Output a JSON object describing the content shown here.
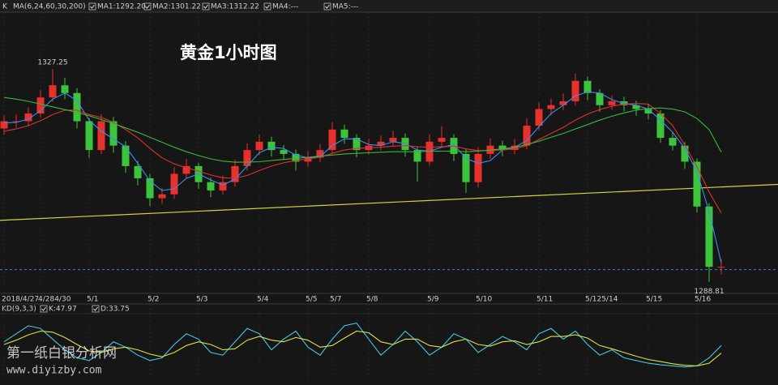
{
  "chart_data": [
    {
      "type": "candlestick",
      "label": "K",
      "indicator": "MA(6,24,60,30,200)",
      "title": "黄金1小时图",
      "categories": [
        "2018/4/27",
        null,
        null,
        "4/284/30",
        null,
        null,
        null,
        "5/1",
        null,
        null,
        null,
        null,
        "5/2",
        null,
        null,
        null,
        "5/3",
        null,
        null,
        null,
        null,
        "5/4",
        null,
        null,
        null,
        "5/5",
        null,
        "5/7",
        null,
        null,
        "5/8",
        null,
        null,
        null,
        null,
        "5/9",
        null,
        null,
        null,
        "5/10",
        null,
        null,
        null,
        null,
        "5/11",
        null,
        null,
        null,
        "5/125/14",
        null,
        null,
        null,
        null,
        "5/15",
        null,
        null,
        null,
        "5/16",
        null,
        null
      ],
      "open": [
        1316.5,
        1317.8,
        1317.8,
        1319.2,
        1322.1,
        1324.3,
        1322.9,
        1317.8,
        1312.6,
        1317.8,
        1313.4,
        1309.7,
        1307.5,
        1303.9,
        1304.6,
        1308.3,
        1309.7,
        1306.8,
        1305.3,
        1306.8,
        1309.7,
        1312.6,
        1314.1,
        1312.6,
        1311.9,
        1310.5,
        1311.2,
        1312.6,
        1316.3,
        1314.8,
        1312.6,
        1313.4,
        1314.1,
        1314.8,
        1312.6,
        1310.5,
        1314.1,
        1314.8,
        1311.9,
        1306.8,
        1311.9,
        1313.4,
        1312.6,
        1313.4,
        1317.0,
        1320.0,
        1320.7,
        1321.4,
        1325.1,
        1322.9,
        1320.7,
        1321.4,
        1320.7,
        1320.0,
        1319.2,
        1314.8,
        1313.4,
        1310.5,
        1302.4,
        1291.5
      ],
      "high": [
        1318.9,
        1319.0,
        1320.3,
        1323.4,
        1327.25,
        1325.6,
        1323.8,
        1318.4,
        1319.1,
        1318.6,
        1314.2,
        1310.6,
        1308.3,
        1305.8,
        1309.5,
        1311.0,
        1310.3,
        1307.6,
        1308.0,
        1310.9,
        1313.8,
        1315.3,
        1315.0,
        1313.5,
        1312.7,
        1312.4,
        1313.7,
        1317.6,
        1317.2,
        1315.5,
        1314.6,
        1315.2,
        1316.1,
        1315.6,
        1313.3,
        1315.4,
        1316.9,
        1315.5,
        1312.8,
        1313.1,
        1314.7,
        1314.3,
        1314.6,
        1318.3,
        1321.2,
        1321.9,
        1322.8,
        1326.4,
        1325.9,
        1323.6,
        1322.5,
        1322.2,
        1321.5,
        1320.9,
        1319.8,
        1315.9,
        1314.0,
        1311.1,
        1303.0,
        1292.9
      ],
      "low": [
        1315.4,
        1316.6,
        1316.9,
        1318.5,
        1321.3,
        1321.8,
        1316.5,
        1311.2,
        1311.9,
        1312.1,
        1308.5,
        1306.2,
        1302.5,
        1302.9,
        1303.8,
        1307.4,
        1305.6,
        1304.1,
        1304.6,
        1306.0,
        1308.9,
        1311.8,
        1311.4,
        1310.8,
        1308.9,
        1309.6,
        1310.4,
        1311.9,
        1313.7,
        1311.3,
        1311.8,
        1312.5,
        1313.2,
        1311.4,
        1306.9,
        1309.8,
        1313.2,
        1310.6,
        1304.9,
        1305.9,
        1311.0,
        1311.5,
        1311.8,
        1312.7,
        1316.2,
        1318.9,
        1319.8,
        1320.6,
        1321.6,
        1319.5,
        1319.9,
        1319.6,
        1318.8,
        1318.1,
        1313.9,
        1312.5,
        1309.2,
        1301.3,
        1288.81,
        1290.1
      ],
      "close": [
        1317.8,
        1317.8,
        1319.2,
        1322.1,
        1324.3,
        1322.9,
        1317.8,
        1312.6,
        1317.8,
        1313.4,
        1309.7,
        1307.5,
        1303.9,
        1304.6,
        1308.3,
        1309.7,
        1306.8,
        1305.3,
        1306.8,
        1309.7,
        1312.6,
        1314.1,
        1312.6,
        1311.9,
        1310.5,
        1311.2,
        1312.6,
        1316.3,
        1314.8,
        1312.6,
        1313.4,
        1314.1,
        1314.8,
        1312.6,
        1310.5,
        1314.1,
        1314.8,
        1311.9,
        1306.8,
        1311.9,
        1313.4,
        1312.6,
        1313.4,
        1317.0,
        1320.0,
        1320.7,
        1321.4,
        1325.1,
        1322.9,
        1320.7,
        1321.4,
        1320.7,
        1320.0,
        1319.2,
        1314.8,
        1313.4,
        1310.5,
        1302.4,
        1291.5,
        1291.5
      ],
      "up_color": "#e8302c",
      "down_color": "#3cc43c",
      "series": [
        {
          "name": "MA1:1292.20",
          "color": "#3a8ef0",
          "values": [
            1317.5,
            1317.6,
            1318.2,
            1319.7,
            1321.8,
            1322.9,
            1321.5,
            1318.0,
            1316.0,
            1314.6,
            1313.2,
            1310.2,
            1307.0,
            1305.3,
            1305.6,
            1307.5,
            1308.3,
            1307.2,
            1306.3,
            1307.3,
            1309.7,
            1312.1,
            1313.1,
            1312.9,
            1311.7,
            1311.2,
            1311.4,
            1313.4,
            1314.6,
            1314.6,
            1313.6,
            1313.4,
            1314.1,
            1313.8,
            1312.6,
            1312.4,
            1313.1,
            1313.6,
            1311.1,
            1310.2,
            1310.7,
            1312.6,
            1313.1,
            1314.3,
            1316.8,
            1319.2,
            1320.7,
            1322.4,
            1323.1,
            1322.9,
            1321.7,
            1321.0,
            1320.7,
            1320.0,
            1318.0,
            1315.8,
            1312.9,
            1308.7,
            1301.5,
            1292.2
          ]
        },
        {
          "name": "MA2:1301.22",
          "color": "#e0302c",
          "values": [
            1316.0,
            1316.4,
            1317.0,
            1317.9,
            1319.0,
            1319.8,
            1319.8,
            1319.0,
            1318.5,
            1317.6,
            1316.3,
            1314.8,
            1312.9,
            1311.2,
            1310.1,
            1309.4,
            1308.8,
            1308.1,
            1307.6,
            1307.5,
            1308.0,
            1308.9,
            1309.7,
            1310.3,
            1310.7,
            1311.0,
            1311.3,
            1312.0,
            1312.6,
            1312.9,
            1313.0,
            1313.1,
            1313.3,
            1313.4,
            1313.2,
            1313.1,
            1313.2,
            1313.3,
            1312.8,
            1312.5,
            1312.5,
            1312.6,
            1312.8,
            1313.4,
            1314.5,
            1315.6,
            1316.7,
            1318.0,
            1319.1,
            1319.9,
            1320.5,
            1320.9,
            1321.0,
            1320.9,
            1319.2,
            1317.0,
            1313.5,
            1309.6,
            1305.0,
            1301.22
          ]
        },
        {
          "name": "MA3:1312.22",
          "color": "#38b838",
          "values": [
            1322.1,
            1321.8,
            1321.4,
            1320.9,
            1320.4,
            1319.9,
            1319.4,
            1318.8,
            1318.1,
            1317.4,
            1316.6,
            1315.8,
            1314.9,
            1314.0,
            1313.1,
            1312.3,
            1311.6,
            1311.0,
            1310.6,
            1310.4,
            1310.4,
            1310.5,
            1310.7,
            1310.9,
            1311.1,
            1311.3,
            1311.5,
            1311.7,
            1311.9,
            1312.0,
            1312.1,
            1312.2,
            1312.3,
            1312.3,
            1312.3,
            1312.4,
            1312.4,
            1312.4,
            1312.3,
            1312.4,
            1312.6,
            1312.8,
            1313.1,
            1313.6,
            1314.2,
            1314.9,
            1315.6,
            1316.4,
            1317.2,
            1318.0,
            1318.7,
            1319.3,
            1319.8,
            1320.1,
            1320.2,
            1320.0,
            1319.5,
            1318.3,
            1316.3,
            1312.22
          ]
        }
      ],
      "legend_only": [
        {
          "name": "MA4:---",
          "color": "#e040e0"
        },
        {
          "name": "MA5:---",
          "color": "#e8e040"
        }
      ],
      "ylim": [
        1287,
        1337.5
      ],
      "trendline": {
        "color": "#d8d040",
        "values": [
          1299.9,
          1306.4
        ]
      },
      "price_line": {
        "color": "#3a7fd0",
        "value": 1291.0
      },
      "annotations": [
        {
          "value": 1327.25,
          "label": "1327.25"
        },
        {
          "value": 1288.81,
          "label": "1288.81"
        }
      ]
    },
    {
      "type": "line",
      "title": "KD(9,3,3)",
      "series": [
        {
          "name": "K:47.97",
          "color": "#40c8e8",
          "values": [
            55,
            70,
            85,
            80,
            60,
            40,
            25,
            20,
            35,
            55,
            45,
            30,
            20,
            25,
            50,
            70,
            60,
            35,
            30,
            55,
            80,
            70,
            40,
            60,
            75,
            45,
            30,
            60,
            85,
            90,
            60,
            30,
            50,
            75,
            55,
            30,
            45,
            70,
            60,
            35,
            50,
            65,
            55,
            40,
            70,
            80,
            60,
            75,
            50,
            30,
            40,
            25,
            20,
            15,
            12,
            10,
            8,
            10,
            25,
            47.97
          ]
        },
        {
          "name": "D:33.75",
          "color": "#e0e040",
          "values": [
            50,
            58,
            68,
            75,
            73,
            63,
            50,
            38,
            35,
            42,
            45,
            40,
            32,
            27,
            35,
            48,
            55,
            50,
            40,
            42,
            58,
            65,
            58,
            55,
            63,
            58,
            45,
            48,
            62,
            75,
            72,
            55,
            50,
            60,
            60,
            48,
            45,
            55,
            60,
            50,
            47,
            55,
            57,
            50,
            55,
            65,
            65,
            68,
            62,
            48,
            42,
            35,
            28,
            22,
            18,
            14,
            11,
            10,
            15,
            33.75
          ]
        }
      ],
      "ylim": [
        0,
        100
      ]
    }
  ],
  "watermark": {
    "line1": "第一纸白银分析网",
    "line2": "www.diyizby.com"
  }
}
